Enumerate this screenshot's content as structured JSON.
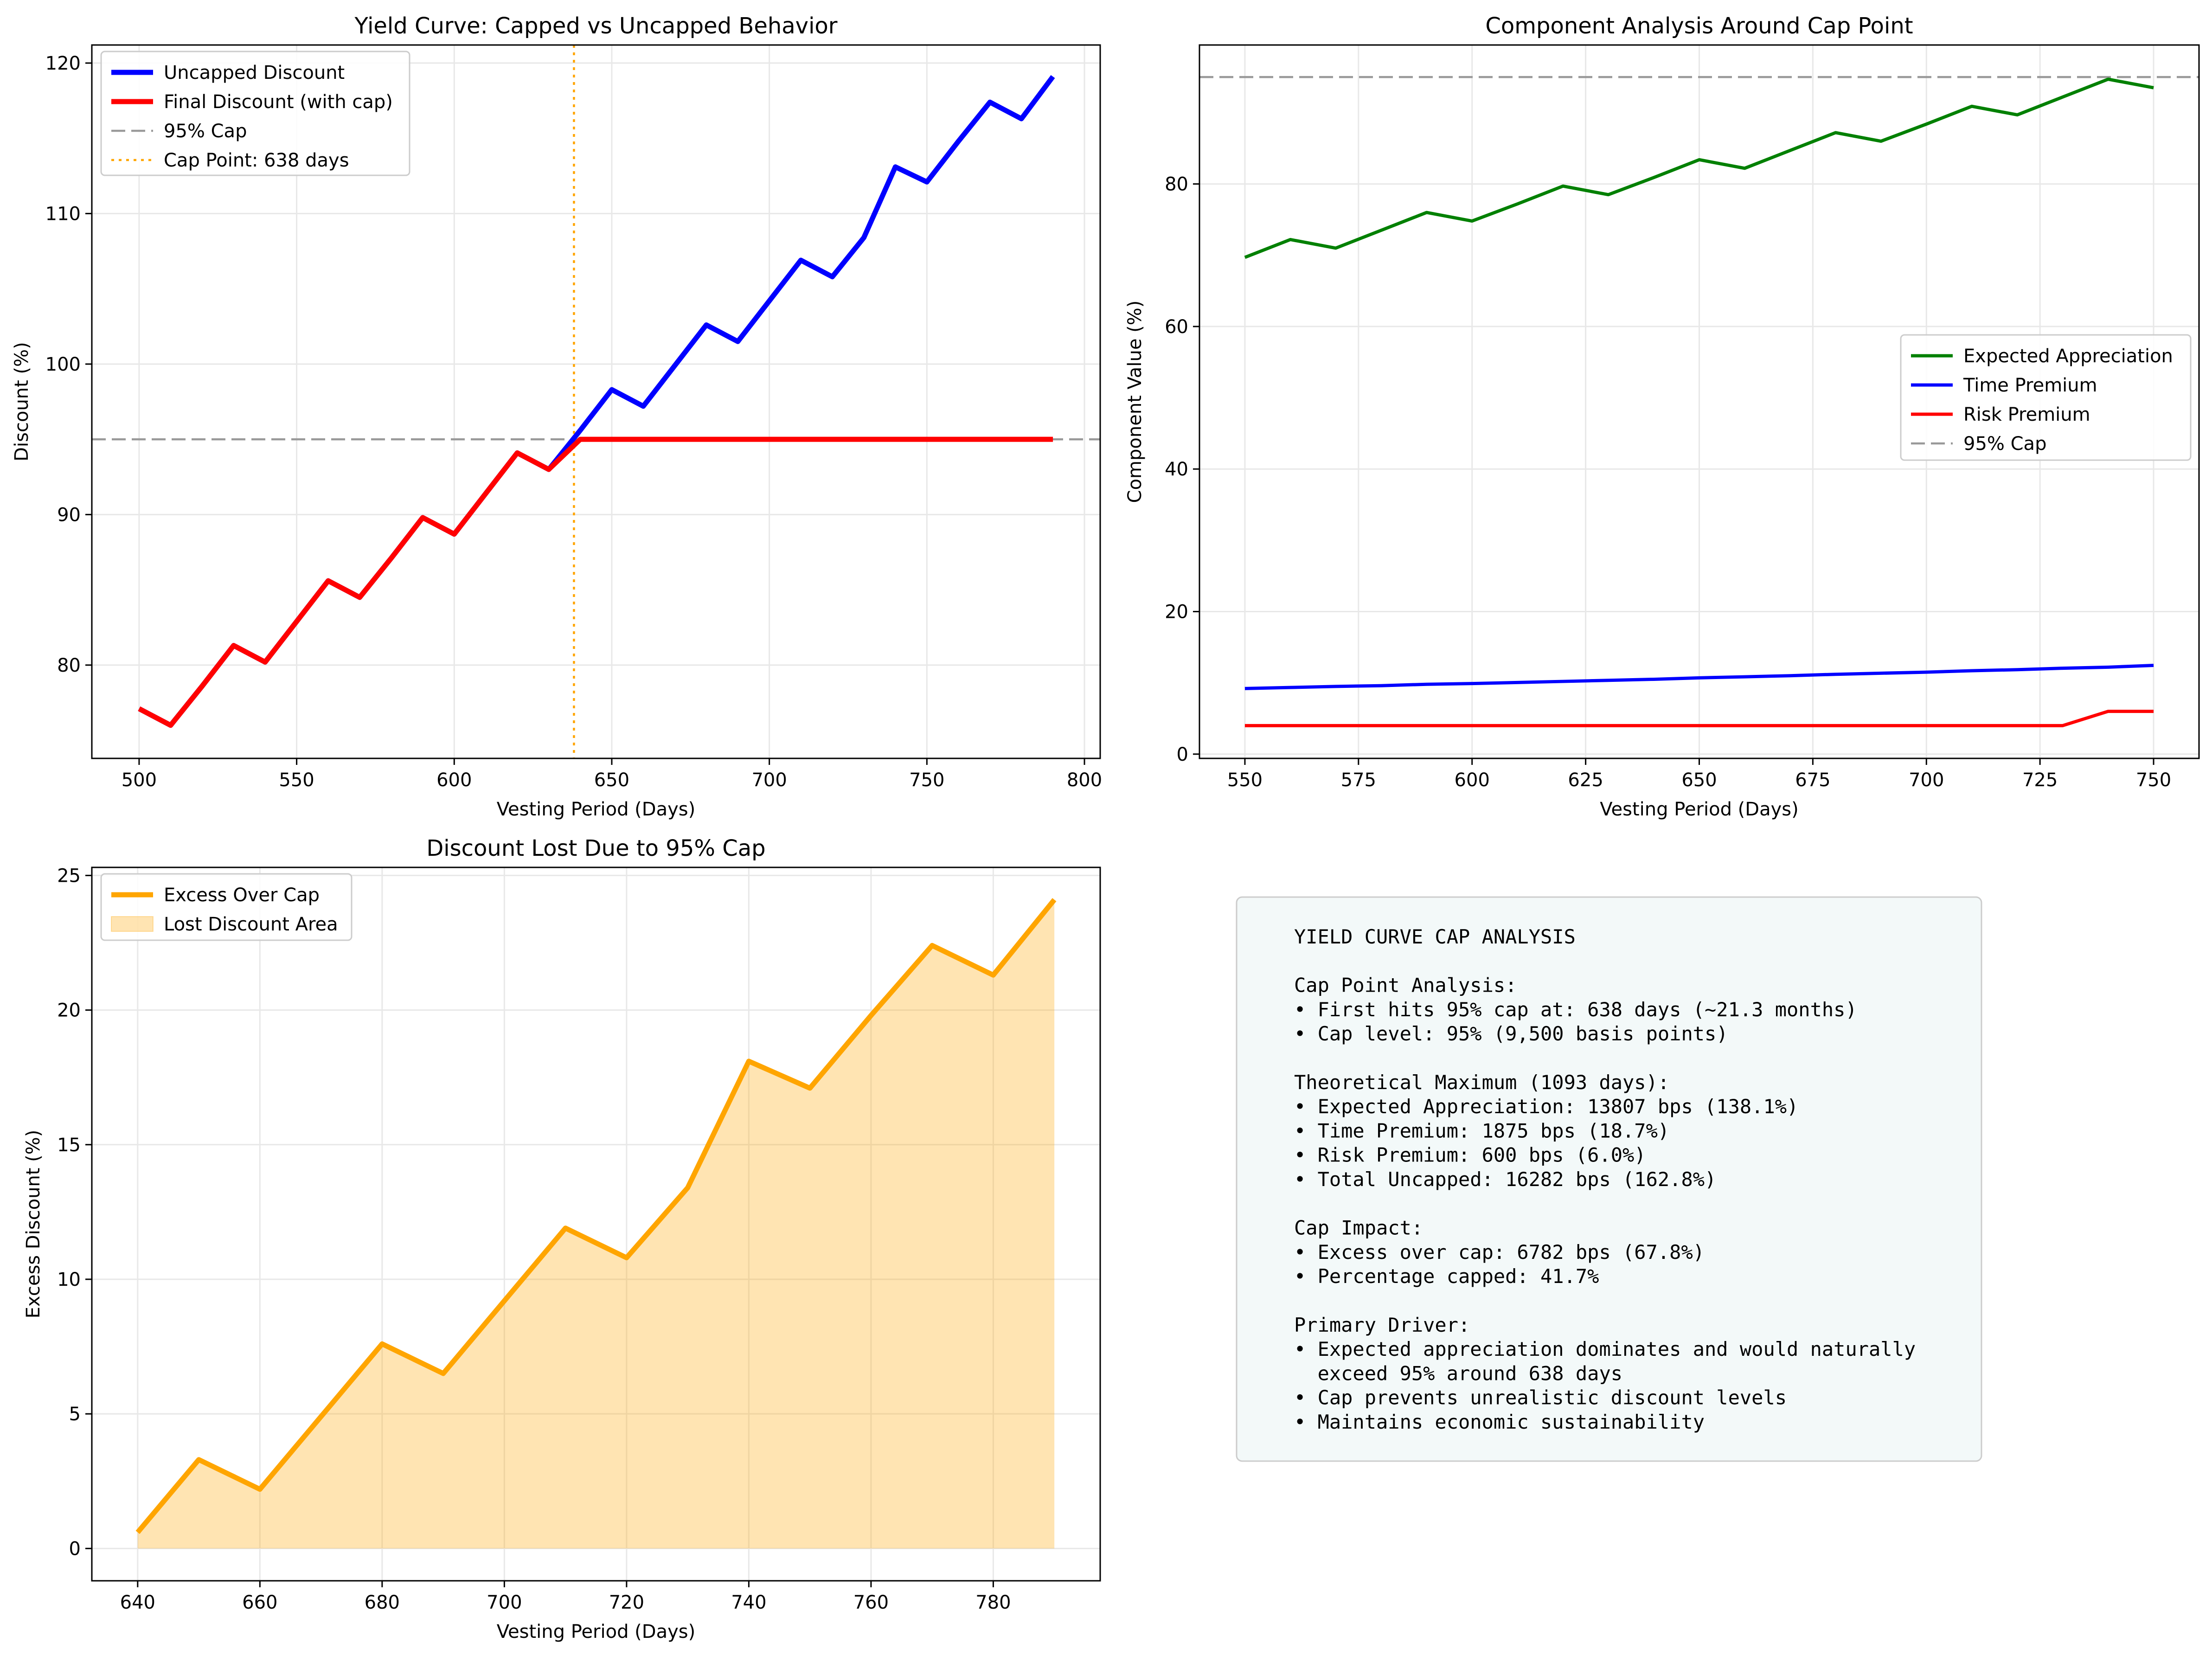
{
  "chart_data": [
    {
      "type": "line",
      "title": "Yield Curve: Capped vs Uncapped Behavior",
      "xlabel": "Vesting Period (Days)",
      "ylabel": "Discount (%)",
      "xlim": [
        485,
        805
      ],
      "ylim": [
        73.8,
        121.2
      ],
      "xticks": [
        500,
        550,
        600,
        650,
        700,
        750,
        800
      ],
      "yticks": [
        80,
        90,
        100,
        110,
        120
      ],
      "grid": true,
      "legend": "top-left",
      "x": [
        500,
        510,
        520,
        530,
        540,
        550,
        560,
        570,
        580,
        590,
        600,
        610,
        620,
        630,
        640,
        650,
        660,
        670,
        680,
        690,
        700,
        710,
        720,
        730,
        740,
        750,
        760,
        770,
        780,
        790
      ],
      "series": [
        {
          "name": "Uncapped Discount",
          "color": "#0000ff",
          "style": "solid",
          "values": [
            77.1,
            76.0,
            78.6,
            81.3,
            80.2,
            82.9,
            85.6,
            84.5,
            87.1,
            89.8,
            88.7,
            91.4,
            94.1,
            93.0,
            95.6,
            98.3,
            97.2,
            99.9,
            102.6,
            101.5,
            104.2,
            106.9,
            105.8,
            108.4,
            113.1,
            112.1,
            114.8,
            117.4,
            116.3,
            119.1
          ]
        },
        {
          "name": "Final Discount (with cap)",
          "color": "#ff0000",
          "style": "solid",
          "values": [
            77.1,
            76.0,
            78.6,
            81.3,
            80.2,
            82.9,
            85.6,
            84.5,
            87.1,
            89.8,
            88.7,
            91.4,
            94.1,
            93.0,
            95.0,
            95.0,
            95.0,
            95.0,
            95.0,
            95.0,
            95.0,
            95.0,
            95.0,
            95.0,
            95.0,
            95.0,
            95.0,
            95.0,
            95.0,
            95.0
          ]
        }
      ],
      "hlines": [
        {
          "name": "95% Cap",
          "y": 95,
          "color": "#999999",
          "style": "dashed"
        }
      ],
      "vlines": [
        {
          "name": "Cap Point: 638 days",
          "x": 638,
          "color": "#ffa500",
          "style": "dotted"
        }
      ]
    },
    {
      "type": "line",
      "title": "Component Analysis Around Cap Point",
      "xlabel": "Vesting Period (Days)",
      "ylabel": "Component Value (%)",
      "xlim": [
        540,
        760
      ],
      "ylim": [
        -0.6,
        99.5
      ],
      "xticks": [
        550,
        575,
        600,
        625,
        650,
        675,
        700,
        725,
        750
      ],
      "yticks": [
        0,
        20,
        40,
        60,
        80
      ],
      "grid": true,
      "legend": "center-right",
      "x": [
        550,
        560,
        570,
        580,
        590,
        600,
        610,
        620,
        630,
        640,
        650,
        660,
        670,
        680,
        690,
        700,
        710,
        720,
        730,
        740,
        750
      ],
      "series": [
        {
          "name": "Expected Appreciation",
          "color": "#008000",
          "style": "solid",
          "values": [
            69.7,
            72.2,
            71.0,
            73.5,
            76.0,
            74.8,
            77.2,
            79.7,
            78.5,
            80.9,
            83.4,
            82.2,
            84.7,
            87.2,
            86.0,
            88.4,
            90.9,
            89.7,
            92.2,
            94.7,
            93.5
          ]
        },
        {
          "name": "Time Premium",
          "color": "#0000ff",
          "style": "solid",
          "values": [
            9.2,
            9.35,
            9.5,
            9.6,
            9.8,
            9.9,
            10.05,
            10.2,
            10.35,
            10.5,
            10.7,
            10.85,
            11.0,
            11.2,
            11.35,
            11.5,
            11.7,
            11.85,
            12.05,
            12.2,
            12.45
          ]
        },
        {
          "name": "Risk Premium",
          "color": "#ff0000",
          "style": "solid",
          "values": [
            4.0,
            4.0,
            4.0,
            4.0,
            4.0,
            4.0,
            4.0,
            4.0,
            4.0,
            4.0,
            4.0,
            4.0,
            4.0,
            4.0,
            4.0,
            4.0,
            4.0,
            4.0,
            4.0,
            6.0,
            6.0
          ]
        }
      ],
      "hlines": [
        {
          "name": "95% Cap",
          "y": 95,
          "color": "#999999",
          "style": "dashed"
        }
      ]
    },
    {
      "type": "area",
      "title": "Discount Lost Due to 95% Cap",
      "xlabel": "Vesting Period (Days)",
      "ylabel": "Excess Discount (%)",
      "xlim": [
        632.5,
        797.5
      ],
      "ylim": [
        -1.2,
        25.3
      ],
      "xticks": [
        640,
        660,
        680,
        700,
        720,
        740,
        760,
        780
      ],
      "yticks": [
        0,
        5,
        10,
        15,
        20,
        25
      ],
      "grid": true,
      "legend": "top-left",
      "x": [
        640,
        650,
        660,
        670,
        680,
        690,
        700,
        710,
        720,
        730,
        740,
        750,
        760,
        770,
        780,
        790
      ],
      "series": [
        {
          "name": "Excess Over Cap",
          "color": "#ffa500",
          "style": "solid",
          "values": [
            0.6,
            3.3,
            2.2,
            4.9,
            7.6,
            6.5,
            9.2,
            11.9,
            10.8,
            13.4,
            18.1,
            17.1,
            19.8,
            22.4,
            21.3,
            24.1
          ]
        }
      ],
      "fill": {
        "name": "Lost Discount Area",
        "color": "#ffa500",
        "opacity": 0.3
      }
    }
  ],
  "summary": {
    "lines": [
      "YIELD CURVE CAP ANALYSIS",
      "",
      "Cap Point Analysis:",
      "• First hits 95% cap at: 638 days (~21.3 months)",
      "• Cap level: 95% (9,500 basis points)",
      "",
      "Theoretical Maximum (1093 days):",
      "• Expected Appreciation: 13807 bps (138.1%)",
      "• Time Premium: 1875 bps (18.7%)",
      "• Risk Premium: 600 bps (6.0%)",
      "• Total Uncapped: 16282 bps (162.8%)",
      "",
      "Cap Impact:",
      "• Excess over cap: 6782 bps (67.8%)",
      "• Percentage capped: 41.7%",
      "",
      "Primary Driver:",
      "• Expected appreciation dominates and would naturally",
      "  exceed 95% around 638 days",
      "• Cap prevents unrealistic discount levels",
      "• Maintains economic sustainability"
    ],
    "background": "#f3f9f9",
    "border": "#cccccc"
  }
}
